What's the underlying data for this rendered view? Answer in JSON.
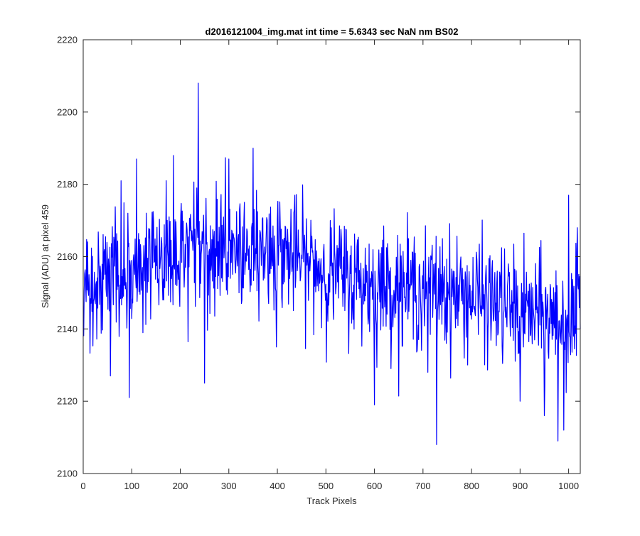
{
  "chart_data": {
    "type": "line",
    "title": "d2016121004_img.mat int time = 5.6343 sec  NaN nm BS02",
    "xlabel": "Track Pixels",
    "ylabel": "Signal (ADU) at pixel 459",
    "xlim": [
      0,
      1024
    ],
    "ylim": [
      2100,
      2220
    ],
    "xticks": [
      0,
      100,
      200,
      300,
      400,
      500,
      600,
      700,
      800,
      900,
      1000
    ],
    "yticks": [
      2100,
      2120,
      2140,
      2160,
      2180,
      2200,
      2220
    ],
    "grid": false,
    "legend": "none",
    "line_color": "#0000ff",
    "series": [
      {
        "x_start": 1,
        "x_step": 1,
        "trend_points": [
          [
            1,
            2152
          ],
          [
            100,
            2156
          ],
          [
            200,
            2163
          ],
          [
            300,
            2163
          ],
          [
            400,
            2162
          ],
          [
            500,
            2156
          ],
          [
            600,
            2152
          ],
          [
            700,
            2151
          ],
          [
            800,
            2149
          ],
          [
            900,
            2145
          ],
          [
            1000,
            2142
          ],
          [
            1024,
            2142
          ]
        ],
        "noise_amplitude": 8,
        "notable_points": [
          [
            1,
            2138
          ],
          [
            56,
            2127
          ],
          [
            78,
            2181
          ],
          [
            95,
            2121
          ],
          [
            110,
            2187
          ],
          [
            186,
            2188
          ],
          [
            237,
            2208
          ],
          [
            250,
            2125
          ],
          [
            300,
            2187
          ],
          [
            350,
            2190
          ],
          [
            398,
            2135
          ],
          [
            600,
            2119
          ],
          [
            710,
            2128
          ],
          [
            728,
            2108
          ],
          [
            740,
            2165
          ],
          [
            900,
            2120
          ],
          [
            950,
            2116
          ],
          [
            978,
            2109
          ],
          [
            990,
            2112
          ],
          [
            1000,
            2177
          ],
          [
            1018,
            2168
          ],
          [
            1024,
            2140
          ]
        ]
      }
    ]
  }
}
